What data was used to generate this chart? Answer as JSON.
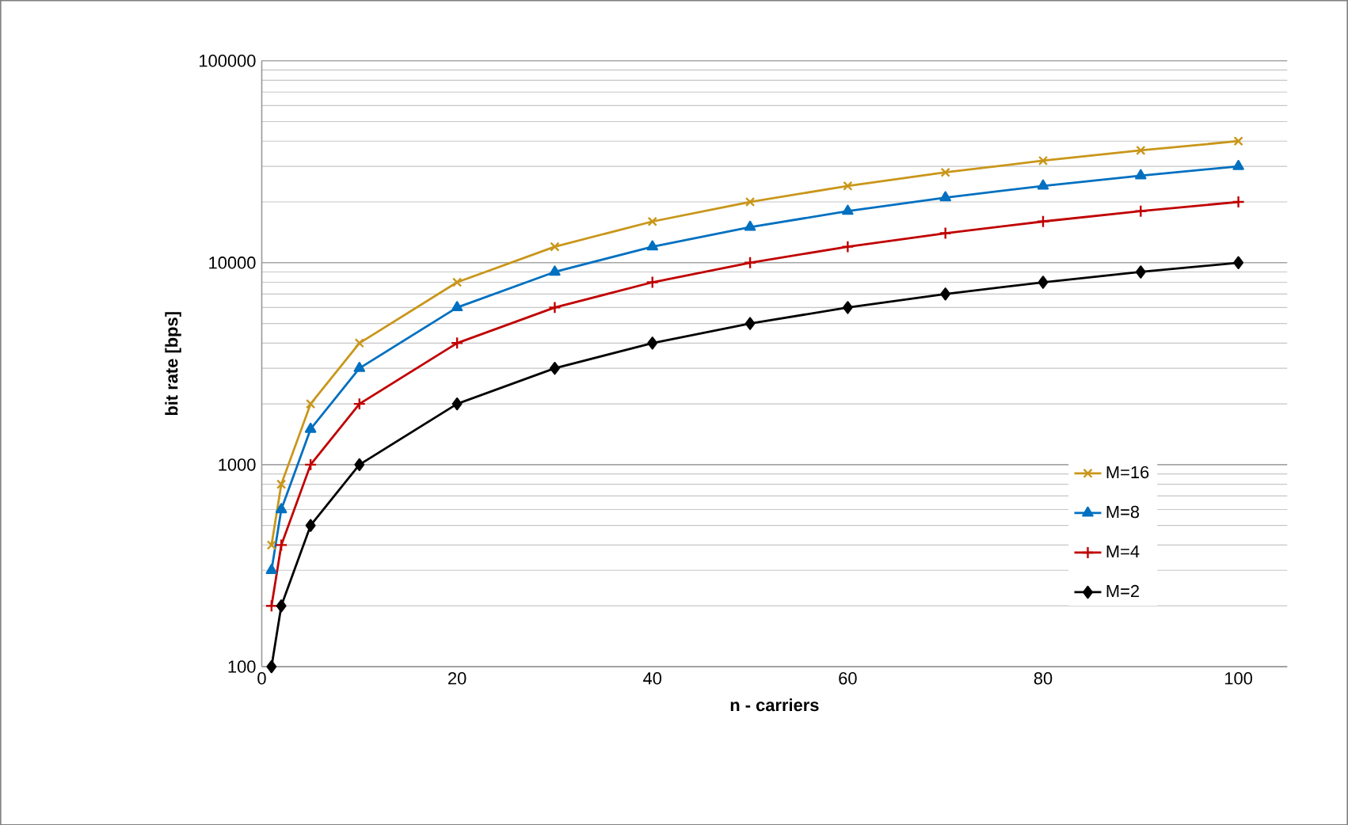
{
  "chart_data": {
    "type": "line",
    "xlabel": "n - carriers",
    "ylabel": "bit rate [bps]",
    "x": [
      1,
      2,
      5,
      10,
      20,
      30,
      40,
      50,
      60,
      70,
      80,
      90,
      100
    ],
    "series": [
      {
        "name": "M=16",
        "color": "#c9961a",
        "marker": "cross",
        "values": [
          400,
          800,
          2000,
          4000,
          8000,
          12000,
          16000,
          20000,
          24000,
          28000,
          32000,
          36000,
          40000
        ]
      },
      {
        "name": "M=8",
        "color": "#0070c0",
        "marker": "triangle",
        "values": [
          300,
          600,
          1500,
          3000,
          6000,
          9000,
          12000,
          15000,
          18000,
          21000,
          24000,
          27000,
          30000
        ]
      },
      {
        "name": "M=4",
        "color": "#c00000",
        "marker": "plus",
        "values": [
          200,
          400,
          1000,
          2000,
          4000,
          6000,
          8000,
          10000,
          12000,
          14000,
          16000,
          18000,
          20000
        ]
      },
      {
        "name": "M=2",
        "color": "#000000",
        "marker": "diamond",
        "values": [
          100,
          200,
          500,
          1000,
          2000,
          3000,
          4000,
          5000,
          6000,
          7000,
          8000,
          9000,
          10000
        ]
      }
    ],
    "xlim": [
      0,
      105
    ],
    "xticks": [
      0,
      20,
      40,
      60,
      80,
      100
    ],
    "ylim": [
      100,
      100000
    ],
    "yticks": [
      100,
      1000,
      10000,
      100000
    ],
    "log": "y",
    "grid": "y",
    "legend": "right"
  }
}
